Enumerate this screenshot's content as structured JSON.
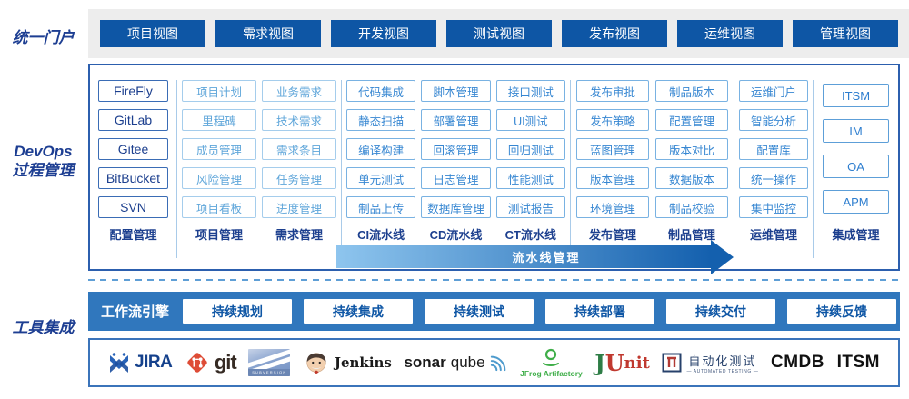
{
  "portal": {
    "label": "统一门户",
    "views": [
      "项目视图",
      "需求视图",
      "开发视图",
      "测试视图",
      "发布视图",
      "运维视图",
      "管理视图"
    ]
  },
  "process": {
    "label_line1": "DevOps",
    "label_line2": "过程管理",
    "pipeline_arrow_label": "流水线管理",
    "groups": [
      {
        "name": "config",
        "columns": [
          {
            "caption": "配置管理",
            "style": "tool",
            "items": [
              "FireFly",
              "GitLab",
              "Gitee",
              "BitBucket",
              "SVN"
            ]
          }
        ]
      },
      {
        "name": "plan",
        "columns": [
          {
            "caption": "项目管理",
            "style": "light",
            "items": [
              "项目计划",
              "里程碑",
              "成员管理",
              "风险管理",
              "项目看板"
            ]
          },
          {
            "caption": "需求管理",
            "style": "light",
            "items": [
              "业务需求",
              "技术需求",
              "需求条目",
              "任务管理",
              "进度管理"
            ]
          }
        ]
      },
      {
        "name": "pipeline",
        "columns": [
          {
            "caption": "CI流水线",
            "style": "mid",
            "items": [
              "代码集成",
              "静态扫描",
              "编译构建",
              "单元测试",
              "制品上传"
            ]
          },
          {
            "caption": "CD流水线",
            "style": "mid",
            "items": [
              "脚本管理",
              "部署管理",
              "回滚管理",
              "日志管理",
              "数据库管理"
            ]
          },
          {
            "caption": "CT流水线",
            "style": "mid",
            "items": [
              "接口测试",
              "UI测试",
              "回归测试",
              "性能测试",
              "测试报告"
            ]
          }
        ]
      },
      {
        "name": "release",
        "columns": [
          {
            "caption": "发布管理",
            "style": "mid",
            "items": [
              "发布审批",
              "发布策略",
              "蓝图管理",
              "版本管理",
              "环境管理"
            ]
          },
          {
            "caption": "制品管理",
            "style": "mid",
            "items": [
              "制品版本",
              "配置管理",
              "版本对比",
              "数据版本",
              "制品校验"
            ]
          }
        ]
      },
      {
        "name": "ops",
        "columns": [
          {
            "caption": "运维管理",
            "style": "mid",
            "items": [
              "运维门户",
              "智能分析",
              "配置库",
              "统一操作",
              "集中监控"
            ]
          }
        ]
      },
      {
        "name": "integration",
        "columns": [
          {
            "caption": "集成管理",
            "style": "integration",
            "items": [
              "ITSM",
              "IM",
              "OA",
              "APM"
            ]
          }
        ]
      }
    ]
  },
  "workflow": {
    "engine_label": "工作流引擎",
    "stages": [
      "持续规划",
      "持续集成",
      "持续测试",
      "持续部署",
      "持续交付",
      "持续反馈"
    ]
  },
  "tools": {
    "label": "工具集成",
    "logos": {
      "jira": {
        "text": "JIRA"
      },
      "git": {
        "text": "git"
      },
      "subversion": {
        "caption": "SUBVERSION"
      },
      "jenkins": {
        "text": "Jenkins"
      },
      "sonarqube": {
        "text_bold": "sonar",
        "text_light": "qube"
      },
      "jfrog": {
        "text": "JFrog Artifactory"
      },
      "junit": {
        "j": "J",
        "u": "U",
        "nit": "nit"
      },
      "automated_testing": {
        "text": "自动化测试",
        "subtext": "— AUTOMATED TESTING —"
      },
      "cmdb": {
        "text": "CMDB"
      },
      "itsm": {
        "text": "ITSM"
      }
    }
  },
  "colors": {
    "primary_button": "#0e56a5",
    "side_label": "#1d3e92",
    "panel_border": "#2c5fae",
    "light_box": "#a5cdec",
    "mid_box": "#79b2e2",
    "arrow_gradient_start": "#8ec5ee",
    "arrow_gradient_end": "#1460ae",
    "workflow_bar": "#3077bd",
    "portal_bar_bg": "#ededed"
  }
}
